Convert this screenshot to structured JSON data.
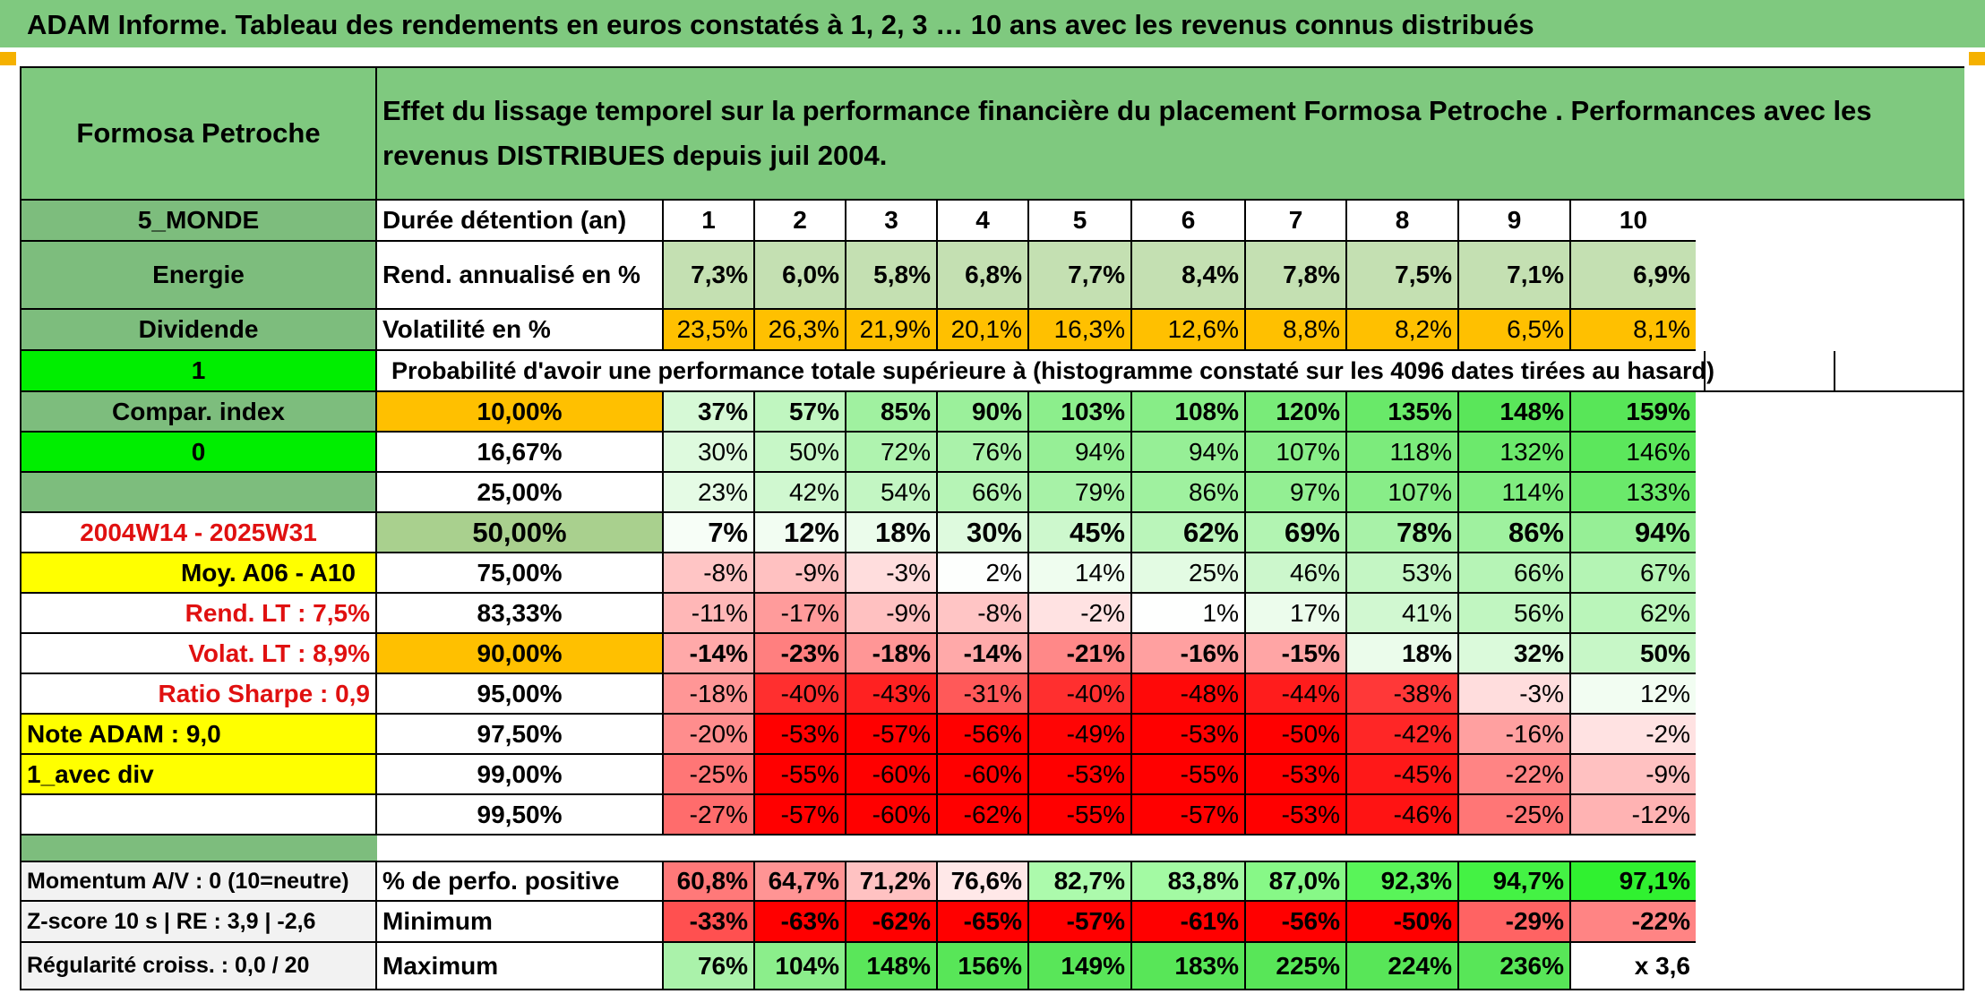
{
  "page_title": "ADAM Informe. Tableau des rendements en euros constatés à 1, 2, 3 … 10 ans avec les revenus connus distribués",
  "fund_name": "Formosa Petroche",
  "description": "Effet du lissage temporel sur la performance financière du placement Formosa Petroche . Performances avec les revenus DISTRIBUES depuis juil 2004.",
  "left_panel": {
    "zone": "5_MONDE",
    "sector": "Energie",
    "income": "Dividende",
    "green_value_1": "1",
    "compar_index": "Compar. index",
    "green_value_0": "0",
    "period": "2004W14 - 2025W31",
    "moy": "Moy. A06 - A10",
    "rend_lt": "Rend. LT :   7,5%",
    "volat_lt": "Volat. LT :   8,9%",
    "sharpe": "Ratio Sharpe :   0,9",
    "note": "Note ADAM : 9,0",
    "avec_div": "1_avec div"
  },
  "stats_labels": {
    "momentum": "Momentum A/V : 0 (10=neutre)",
    "zscore": "Z-score 10 s | RE : 3,9 | -2,6",
    "regularite": "Régularité croiss. : 0,0 / 20"
  },
  "table": {
    "duration_label": "Durée détention (an)",
    "durations": [
      "1",
      "2",
      "3",
      "4",
      "5",
      "6",
      "7",
      "8",
      "9",
      "10"
    ],
    "rend_label": "Rend. annualisé en %",
    "rend_values": [
      "7,3%",
      "6,0%",
      "5,8%",
      "6,8%",
      "7,7%",
      "8,4%",
      "7,8%",
      "7,5%",
      "7,1%",
      "6,9%"
    ],
    "vol_label": "Volatilité en %",
    "vol_values": [
      "23,5%",
      "26,3%",
      "21,9%",
      "20,1%",
      "16,3%",
      "12,6%",
      "8,8%",
      "8,2%",
      "6,5%",
      "8,1%"
    ],
    "prob_title": "Probabilité d'avoir une performance totale supérieure à (histogramme constaté sur les 4096 dates tirées au hasard)",
    "prob_rows": [
      {
        "pct": "10,00%",
        "values": [
          "37%",
          "57%",
          "85%",
          "90%",
          "103%",
          "108%",
          "120%",
          "135%",
          "148%",
          "159%"
        ]
      },
      {
        "pct": "16,67%",
        "values": [
          "30%",
          "50%",
          "72%",
          "76%",
          "94%",
          "94%",
          "107%",
          "118%",
          "132%",
          "146%"
        ]
      },
      {
        "pct": "25,00%",
        "values": [
          "23%",
          "42%",
          "54%",
          "66%",
          "79%",
          "86%",
          "97%",
          "107%",
          "114%",
          "133%"
        ]
      },
      {
        "pct": "50,00%",
        "values": [
          "7%",
          "12%",
          "18%",
          "30%",
          "45%",
          "62%",
          "69%",
          "78%",
          "86%",
          "94%"
        ]
      },
      {
        "pct": "75,00%",
        "values": [
          "-8%",
          "-9%",
          "-3%",
          "2%",
          "14%",
          "25%",
          "46%",
          "53%",
          "66%",
          "67%"
        ]
      },
      {
        "pct": "83,33%",
        "values": [
          "-11%",
          "-17%",
          "-9%",
          "-8%",
          "-2%",
          "1%",
          "17%",
          "41%",
          "56%",
          "62%"
        ]
      },
      {
        "pct": "90,00%",
        "values": [
          "-14%",
          "-23%",
          "-18%",
          "-14%",
          "-21%",
          "-16%",
          "-15%",
          "18%",
          "32%",
          "50%"
        ]
      },
      {
        "pct": "95,00%",
        "values": [
          "-18%",
          "-40%",
          "-43%",
          "-31%",
          "-40%",
          "-48%",
          "-44%",
          "-38%",
          "-3%",
          "12%"
        ]
      },
      {
        "pct": "97,50%",
        "values": [
          "-20%",
          "-53%",
          "-57%",
          "-56%",
          "-49%",
          "-53%",
          "-50%",
          "-42%",
          "-16%",
          "-2%"
        ]
      },
      {
        "pct": "99,00%",
        "values": [
          "-25%",
          "-55%",
          "-60%",
          "-60%",
          "-53%",
          "-55%",
          "-53%",
          "-45%",
          "-22%",
          "-9%"
        ]
      },
      {
        "pct": "99,50%",
        "values": [
          "-27%",
          "-57%",
          "-60%",
          "-62%",
          "-55%",
          "-57%",
          "-53%",
          "-46%",
          "-25%",
          "-12%"
        ]
      }
    ],
    "positive_label": "% de perfo. positive",
    "positive_values": [
      "60,8%",
      "64,7%",
      "71,2%",
      "76,6%",
      "82,7%",
      "83,8%",
      "87,0%",
      "92,3%",
      "94,7%",
      "97,1%"
    ],
    "min_label": "Minimum",
    "min_values": [
      "-33%",
      "-63%",
      "-62%",
      "-65%",
      "-57%",
      "-61%",
      "-56%",
      "-50%",
      "-29%",
      "-22%"
    ],
    "max_label": "Maximum",
    "max_values": [
      "76%",
      "104%",
      "148%",
      "156%",
      "149%",
      "183%",
      "225%",
      "224%",
      "236%",
      "x 3,6"
    ]
  },
  "colors": {
    "header_green": "#7fc97f",
    "left_green": "#7dbd7d",
    "bright_green": "#00ee00",
    "yellow": "#ffff00",
    "orange": "#ffc000",
    "rend_bg": "#c4e0b2",
    "median_pct_bg": "#a9d08e"
  }
}
